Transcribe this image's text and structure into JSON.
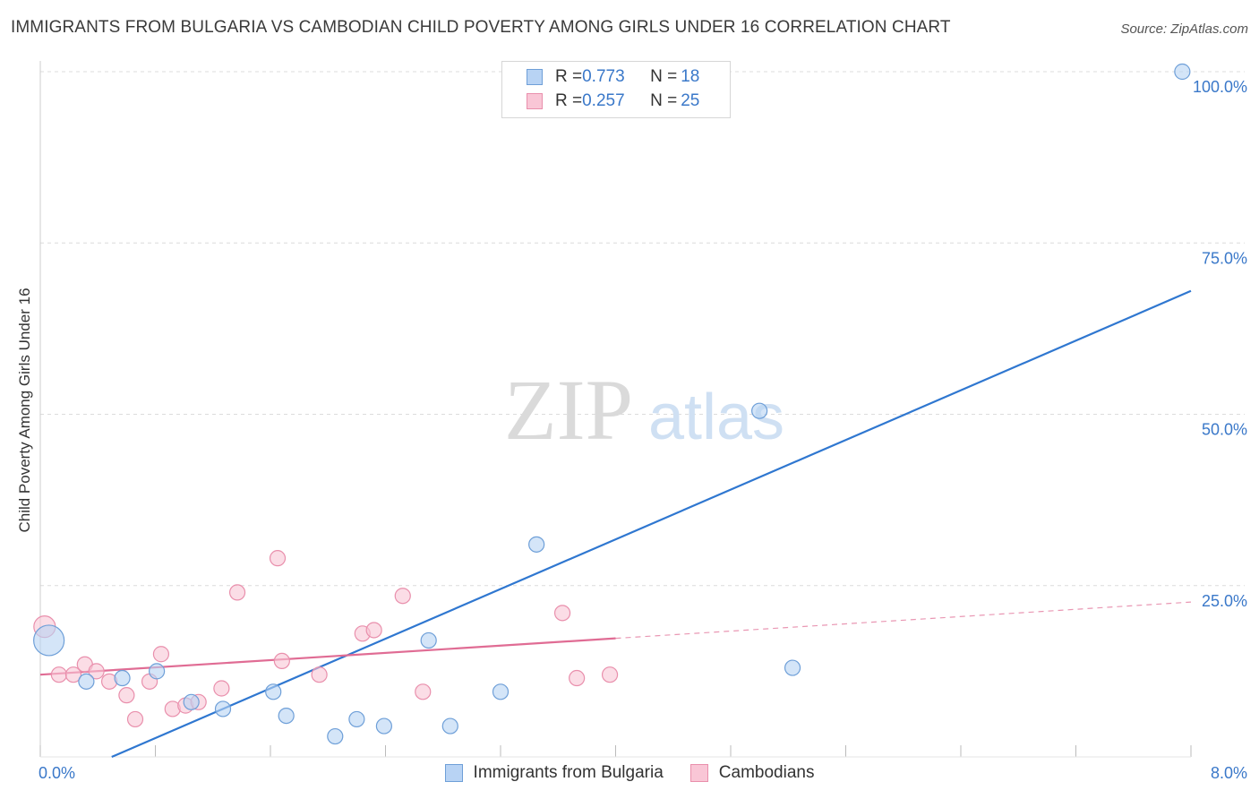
{
  "header": {
    "title": "IMMIGRANTS FROM BULGARIA VS CAMBODIAN CHILD POVERTY AMONG GIRLS UNDER 16 CORRELATION CHART",
    "source": "Source: ZipAtlas.com"
  },
  "legend_top": {
    "rows": [
      {
        "r_label": "R = ",
        "r_value": "0.773",
        "n_label": "N = ",
        "n_value": "18"
      },
      {
        "r_label": "R = ",
        "r_value": "0.257",
        "n_label": "N = ",
        "n_value": "25"
      }
    ]
  },
  "watermark": {
    "zip": "ZIP",
    "atlas": "atlas"
  },
  "colors": {
    "blue_fill": "#b8d3f4",
    "blue_stroke": "#6e9fd8",
    "blue_line": "#2f77d0",
    "pink_fill": "#f9c6d6",
    "pink_stroke": "#e98fac",
    "pink_line": "#e06c94",
    "axis_label": "#3a78c9",
    "grid": "#dcdcdc"
  },
  "chart_data": {
    "type": "scatter",
    "title": "IMMIGRANTS FROM BULGARIA VS CAMBODIAN CHILD POVERTY AMONG GIRLS UNDER 16 CORRELATION CHART",
    "xlabel": "",
    "ylabel": "Child Poverty Among Girls Under 16",
    "xlim": [
      0,
      8
    ],
    "ylim": [
      0,
      100
    ],
    "x_tick_labels": [
      "0.0%",
      "8.0%"
    ],
    "y_ticks": [
      25,
      50,
      75,
      100
    ],
    "y_tick_labels": [
      "25.0%",
      "50.0%",
      "75.0%",
      "100.0%"
    ],
    "grid": true,
    "legend_position": "top-center",
    "series": [
      {
        "name": "Immigrants from Bulgaria",
        "color": "blue",
        "points": [
          {
            "x": 0.06,
            "y": 17,
            "size": "large"
          },
          {
            "x": 0.32,
            "y": 11
          },
          {
            "x": 0.57,
            "y": 11.5
          },
          {
            "x": 0.81,
            "y": 12.5
          },
          {
            "x": 1.05,
            "y": 8
          },
          {
            "x": 1.27,
            "y": 7
          },
          {
            "x": 1.62,
            "y": 9.5
          },
          {
            "x": 1.71,
            "y": 6
          },
          {
            "x": 2.05,
            "y": 3
          },
          {
            "x": 2.2,
            "y": 5.5
          },
          {
            "x": 2.39,
            "y": 4.5
          },
          {
            "x": 2.7,
            "y": 17
          },
          {
            "x": 2.85,
            "y": 4.5
          },
          {
            "x": 3.2,
            "y": 9.5
          },
          {
            "x": 3.45,
            "y": 31
          },
          {
            "x": 5.0,
            "y": 50.5
          },
          {
            "x": 5.23,
            "y": 13
          },
          {
            "x": 7.94,
            "y": 100
          }
        ],
        "trendline": {
          "x1": 0,
          "y1": -4.5,
          "x2": 8,
          "y2": 68
        }
      },
      {
        "name": "Cambodians",
        "color": "pink",
        "points": [
          {
            "x": 0.03,
            "y": 19,
            "size": "medium"
          },
          {
            "x": 0.13,
            "y": 12
          },
          {
            "x": 0.23,
            "y": 12
          },
          {
            "x": 0.31,
            "y": 13.5
          },
          {
            "x": 0.39,
            "y": 12.5
          },
          {
            "x": 0.48,
            "y": 11
          },
          {
            "x": 0.6,
            "y": 9
          },
          {
            "x": 0.66,
            "y": 5.5
          },
          {
            "x": 0.76,
            "y": 11
          },
          {
            "x": 0.84,
            "y": 15
          },
          {
            "x": 0.92,
            "y": 7
          },
          {
            "x": 1.01,
            "y": 7.5
          },
          {
            "x": 1.1,
            "y": 8
          },
          {
            "x": 1.26,
            "y": 10
          },
          {
            "x": 1.37,
            "y": 24
          },
          {
            "x": 1.65,
            "y": 29
          },
          {
            "x": 1.68,
            "y": 14
          },
          {
            "x": 1.94,
            "y": 12
          },
          {
            "x": 2.24,
            "y": 18
          },
          {
            "x": 2.32,
            "y": 18.5
          },
          {
            "x": 2.52,
            "y": 23.5
          },
          {
            "x": 2.66,
            "y": 9.5
          },
          {
            "x": 3.63,
            "y": 21
          },
          {
            "x": 3.73,
            "y": 11.5
          },
          {
            "x": 3.96,
            "y": 12
          }
        ],
        "trendline": {
          "x1": 0,
          "y1": 12,
          "x2": 4.0,
          "y2": 17.3,
          "dashed_to_x": 8,
          "dashed_to_y": 22.6
        }
      }
    ]
  }
}
